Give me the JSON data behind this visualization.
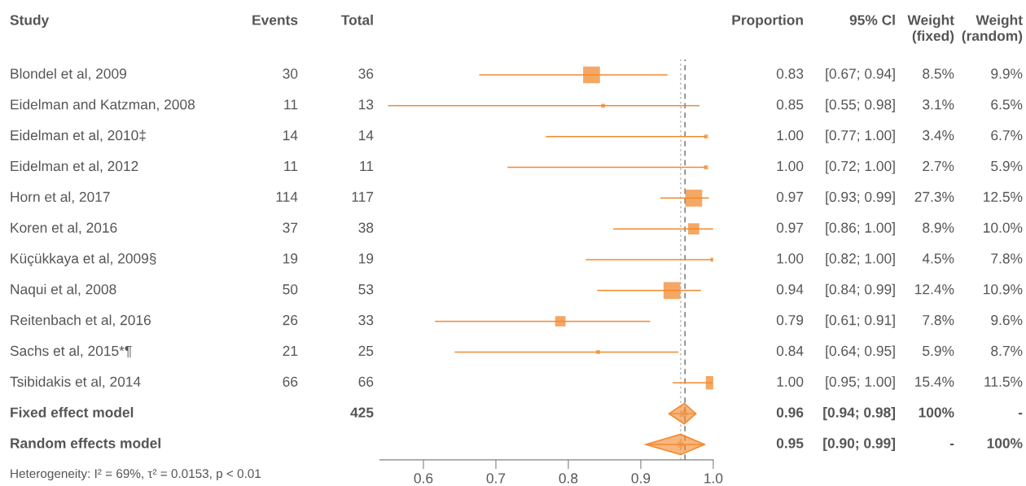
{
  "chart_data": [
    {
      "type": "other",
      "categories": [
        "Study",
        "Events",
        "Total"
      ],
      "y_categories": [
        "Blondel et al, 2009",
        "Eidelman and Katzman, 2008",
        "Eidelman et al, 2010‡",
        "Eidelman et al, 2012",
        "Horn et al, 2017",
        "Koren et al, 2016",
        "Küçükkaya et al, 2009§",
        "Naqui et al, 2008",
        "Reitenbach et al, 2016",
        "Sachs et al, 2015*¶",
        "Tsibidakis et al, 2014",
        "Fixed effect model",
        "Random effects model"
      ],
      "cell_labels": [
        [
          "30",
          "36"
        ],
        [
          "11",
          "13"
        ],
        [
          "14",
          "14"
        ],
        [
          "11",
          "11"
        ],
        [
          "114",
          "117"
        ],
        [
          "37",
          "38"
        ],
        [
          "19",
          "19"
        ],
        [
          "50",
          "53"
        ],
        [
          "26",
          "33"
        ],
        [
          "21",
          "25"
        ],
        [
          "66",
          "66"
        ],
        [
          null,
          "425"
        ],
        [
          null,
          null
        ]
      ],
      "annotations": [
        "Heterogeneity: I² = 69%, τ² = 0.0153, p < 0.01"
      ]
    },
    {
      "type": "scatter",
      "orientation": "horizontal",
      "categories": [
        null,
        null,
        null,
        null,
        null,
        null,
        null,
        null,
        null,
        null,
        null,
        null,
        null
      ],
      "series": [
        {
          "color": "#f28a30",
          "marker": "square",
          "values": [
            0.832,
            0.848,
            0.99,
            0.99,
            0.973,
            0.973,
            0.999,
            0.943,
            0.789,
            0.841,
            0.999,
            null,
            null
          ],
          "errors": [
            [
              0.677,
              0.937
            ],
            [
              0.551,
              0.981
            ],
            [
              0.769,
              0.99
            ],
            [
              0.716,
              0.99
            ],
            [
              0.927,
              0.994
            ],
            [
              0.862,
              1.0
            ],
            [
              0.824,
              0.999
            ],
            [
              0.84,
              0.983
            ],
            [
              0.616,
              0.913
            ],
            [
              0.643,
              0.952
            ],
            [
              0.944,
              0.999
            ],
            null,
            null
          ],
          "sizes": [
            1,
            null,
            null,
            null,
            1,
            0.44,
            null,
            1,
            0.38,
            null,
            0.64,
            null,
            null
          ]
        },
        {
          "color": "#f28a30",
          "marker": "diamond",
          "values": [
            null,
            null,
            null,
            null,
            null,
            null,
            null,
            null,
            null,
            null,
            null,
            0.96,
            null
          ],
          "errors": [
            null,
            null,
            null,
            null,
            null,
            null,
            null,
            null,
            null,
            null,
            null,
            [
              0.939,
              0.976
            ],
            null
          ]
        },
        {
          "color": "#f28a30",
          "marker": "diamond",
          "values": [
            null,
            null,
            null,
            null,
            null,
            null,
            null,
            null,
            null,
            null,
            null,
            null,
            0.955
          ],
          "errors": [
            null,
            null,
            null,
            null,
            null,
            null,
            null,
            null,
            null,
            null,
            null,
            null,
            [
              0.907,
              0.988
            ]
          ]
        }
      ],
      "xlim": [
        0.54,
        1.0
      ],
      "xticks": [
        0.6,
        0.7,
        0.8,
        0.9,
        {
          "value": 1.0,
          "label": "1.0"
        }
      ],
      "ref_lines": [
        {
          "axis": "x",
          "value": 0.961,
          "color": "#808080",
          "line_style": "dashed"
        },
        {
          "axis": "x",
          "value": 0.955,
          "color": "#c0c0c0",
          "line_style": "dotted"
        }
      ]
    },
    {
      "type": "other",
      "categories": [
        "Proportion",
        "95% Cl",
        "Weight\n(fixed)",
        "Weight\n(random)"
      ],
      "cell_labels": [
        [
          "0.83",
          "[0.67; 0.94]",
          "8.5%",
          "9.9%"
        ],
        [
          "0.85",
          "[0.55; 0.98]",
          "3.1%",
          "6.5%"
        ],
        [
          "1.00",
          "[0.77; 1.00]",
          "3.4%",
          "6.7%"
        ],
        [
          "1.00",
          "[0.72; 1.00]",
          "2.7%",
          "5.9%"
        ],
        [
          "0.97",
          "[0.93; 0.99]",
          "27.3%",
          "12.5%"
        ],
        [
          "0.97",
          "[0.86; 1.00]",
          "8.9%",
          "10.0%"
        ],
        [
          "1.00",
          "[0.82; 1.00]",
          "4.5%",
          "7.8%"
        ],
        [
          "0.94",
          "[0.84; 0.99]",
          "12.4%",
          "10.9%"
        ],
        [
          "0.79",
          "[0.61; 0.91]",
          "7.8%",
          "9.6%"
        ],
        [
          "0.84",
          "[0.64; 0.95]",
          "5.9%",
          "8.7%"
        ],
        [
          "1.00",
          "[0.95; 1.00]",
          "15.4%",
          "11.5%"
        ],
        [
          "0.96",
          "[0.94; 0.98]",
          "100%",
          "-"
        ],
        [
          "0.95",
          "[0.90; 0.99]",
          "-",
          "100%"
        ]
      ]
    }
  ]
}
